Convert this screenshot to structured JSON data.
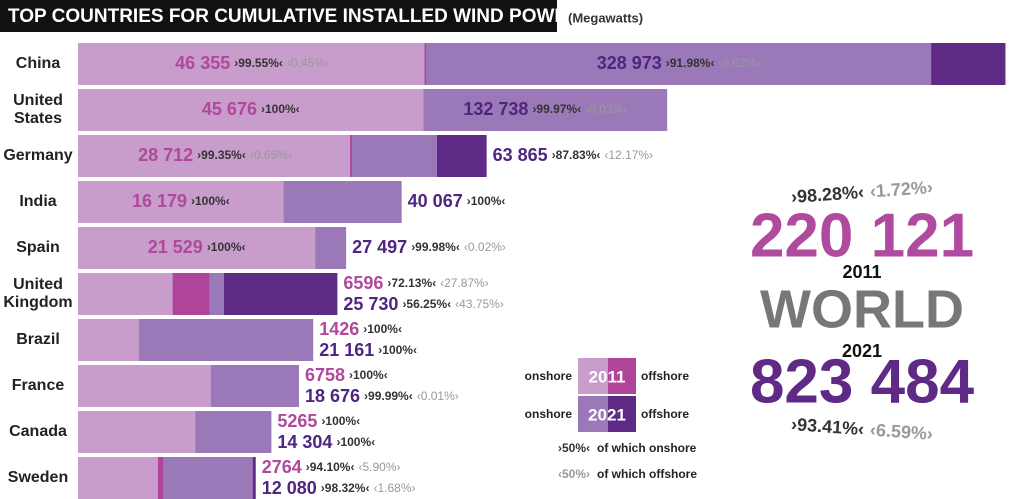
{
  "chart_data": {
    "type": "bar",
    "title": "TOP COUNTRIES FOR CUMULATIVE INSTALLED WIND POWER",
    "subtitle": "(Megawatts)",
    "scale": "sqrt",
    "categories": [
      "China",
      "United States",
      "Germany",
      "India",
      "Spain",
      "United Kingdom",
      "Brazil",
      "France",
      "Canada",
      "Sweden"
    ],
    "series": [
      {
        "name": "2011",
        "color": "#c89ccb",
        "offshore_color": "#b0449a",
        "values": [
          46355,
          45676,
          28712,
          16179,
          21529,
          6596,
          1426,
          6758,
          5265,
          2764
        ],
        "value_labels": [
          "46 355",
          "45 676",
          "28 712",
          "16 179",
          "21 529",
          "6596",
          "1426",
          "6758",
          "5265",
          "2764"
        ],
        "onshore": [
          99.55,
          100,
          99.35,
          100,
          100,
          72.13,
          100,
          100,
          100,
          94.1
        ],
        "onshore_labels": [
          "›99.55%‹",
          "›100%‹",
          "›99.35%‹",
          "›100%‹",
          "›100%‹",
          "›72.13%‹",
          "›100%‹",
          "›100%‹",
          "›100%‹",
          "›94.10%‹"
        ],
        "offshore": [
          0.45,
          null,
          0.65,
          null,
          null,
          27.87,
          null,
          null,
          null,
          5.9
        ],
        "offshore_labels": [
          "‹0.45%›",
          null,
          "‹0.65%›",
          null,
          null,
          "‹27.87%›",
          null,
          null,
          null,
          "‹5.90%›"
        ]
      },
      {
        "name": "2021",
        "color": "#9b79b8",
        "offshore_color": "#5e2a86",
        "values": [
          328973,
          132738,
          63865,
          40067,
          27497,
          25730,
          21161,
          18676,
          14304,
          12080
        ],
        "value_labels": [
          "328 973",
          "132 738",
          "63 865",
          "40 067",
          "27 497",
          "25 730",
          "21 161",
          "18 676",
          "14 304",
          "12 080"
        ],
        "onshore": [
          91.98,
          99.97,
          87.83,
          100,
          99.98,
          56.25,
          100,
          99.99,
          100,
          98.32
        ],
        "onshore_labels": [
          "›91.98%‹",
          "›99.97%‹",
          "›87.83%‹",
          "›100%‹",
          "›99.98%‹",
          "›56.25%‹",
          "›100%‹",
          "›99.99%‹",
          "›100%‹",
          "›98.32%‹"
        ],
        "offshore": [
          8.02,
          0.03,
          12.17,
          null,
          0.02,
          43.75,
          null,
          0.01,
          null,
          1.68
        ],
        "offshore_labels": [
          "‹8.02%›",
          "‹0.03%›",
          "‹12.17%›",
          null,
          "‹0.02%›",
          "‹43.75%›",
          null,
          "‹0.01%›",
          null,
          "‹1.68%›"
        ]
      }
    ],
    "legend": {
      "onshore": "onshore",
      "offshore": "offshore",
      "onshore_share": "›50%‹",
      "onshore_text": "of which onshore",
      "offshore_share": "‹50%›",
      "offshore_text": "of which offshore"
    },
    "world": {
      "label": "WORLD",
      "values": [
        220121,
        823484
      ],
      "value_labels": [
        "220 121",
        "823 484"
      ],
      "onshore_labels": [
        "›98.28%‹",
        "›93.41%‹"
      ],
      "offshore_labels": [
        "‹1.72%›",
        "‹6.59%›"
      ]
    }
  }
}
